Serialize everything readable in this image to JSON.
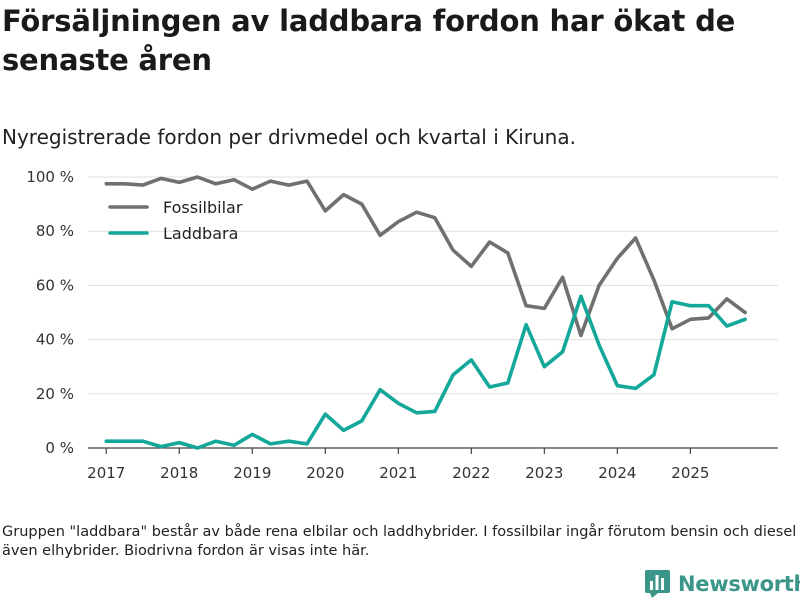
{
  "title": "Försäljningen av laddbara fordon har ökat de senaste åren",
  "subtitle": "Nyregistrerade fordon per drivmedel och kvartal i Kiruna.",
  "footnote": "Gruppen \"laddbara\" består av både rena elbilar och laddhybrider. I fossilbilar ingår förutom bensin och diesel även elhybrider. Biodrivna fordon är visas inte här.",
  "brand": {
    "name": "Newsworthy",
    "color": "#3a9688"
  },
  "chart_data": {
    "type": "line",
    "title": "Försäljningen av laddbara fordon har ökat de senaste åren",
    "subtitle": "Nyregistrerade fordon per drivmedel och kvartal i Kiruna.",
    "xlabel": "",
    "ylabel": "",
    "ylim": [
      0,
      100
    ],
    "yticks": [
      0,
      20,
      40,
      60,
      80,
      100
    ],
    "ytick_labels": [
      "0 %",
      "20 %",
      "40 %",
      "60 %",
      "80 %",
      "100 %"
    ],
    "xlim": [
      2016.75,
      2026.2
    ],
    "xticks": [
      2017,
      2018,
      2019,
      2020,
      2021,
      2022,
      2023,
      2024,
      2025
    ],
    "xtick_labels": [
      "2017",
      "2018",
      "2019",
      "2020",
      "2021",
      "2022",
      "2023",
      "2024",
      "2025"
    ],
    "grid": true,
    "legend_position": "top-left",
    "x": [
      2017.0,
      2017.25,
      2017.5,
      2017.75,
      2018.0,
      2018.25,
      2018.5,
      2018.75,
      2019.0,
      2019.25,
      2019.5,
      2019.75,
      2020.0,
      2020.25,
      2020.5,
      2020.75,
      2021.0,
      2021.25,
      2021.5,
      2021.75,
      2022.0,
      2022.25,
      2022.5,
      2022.75,
      2023.0,
      2023.25,
      2023.5,
      2023.75,
      2024.0,
      2024.25,
      2024.5,
      2024.75,
      2025.0,
      2025.25,
      2025.5,
      2025.75
    ],
    "series": [
      {
        "name": "Fossilbilar",
        "color": "#707070",
        "values": [
          97.5,
          97.5,
          97.0,
          99.5,
          98.0,
          100.0,
          97.5,
          99.0,
          95.5,
          98.5,
          97.0,
          98.5,
          87.5,
          93.5,
          90.0,
          78.5,
          83.5,
          87.0,
          85.0,
          73.0,
          67.0,
          76.0,
          72.0,
          52.5,
          51.5,
          63.0,
          41.5,
          60.0,
          70.0,
          77.5,
          62.0,
          44.0,
          47.5,
          48.0,
          55.0,
          50.0
        ]
      },
      {
        "name": "Laddbara",
        "color": "#14a89a",
        "values": [
          2.5,
          2.5,
          2.5,
          0.5,
          2.0,
          0.0,
          2.5,
          1.0,
          5.0,
          1.5,
          2.5,
          1.5,
          12.5,
          6.5,
          10.0,
          21.5,
          16.5,
          13.0,
          13.5,
          27.0,
          32.5,
          22.5,
          24.0,
          45.5,
          30.0,
          35.5,
          56.0,
          38.0,
          23.0,
          22.0,
          27.0,
          54.0,
          52.5,
          52.5,
          45.0,
          47.5
        ]
      }
    ]
  }
}
